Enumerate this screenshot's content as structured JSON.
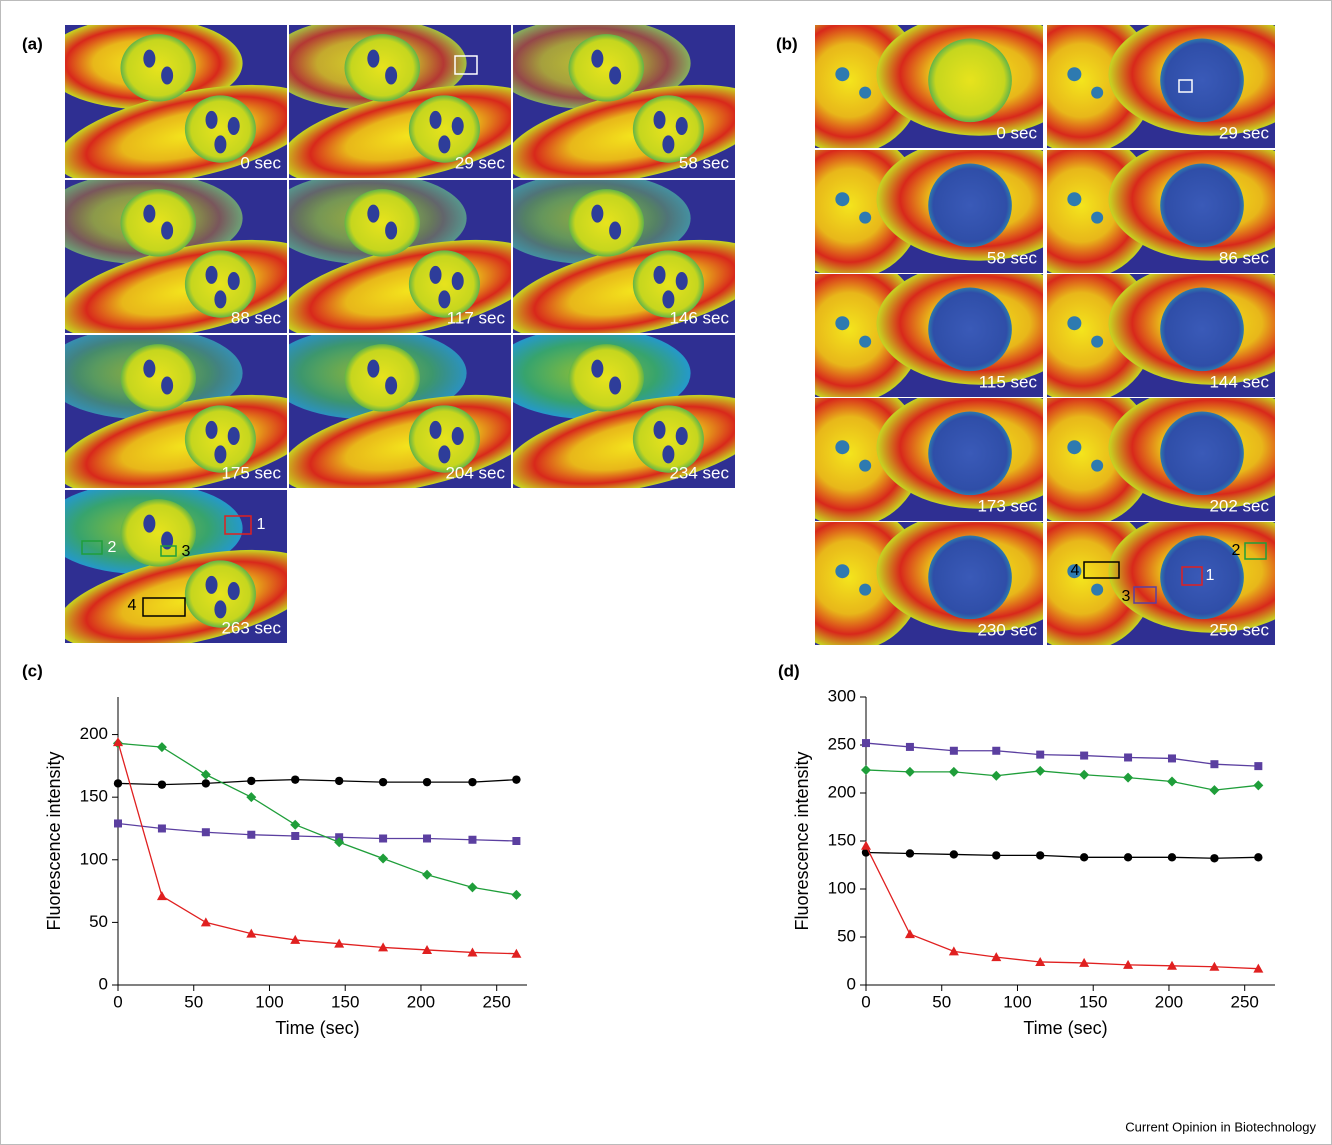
{
  "panel_a": {
    "label": "(a)",
    "frames": [
      "0 sec",
      "29 sec",
      "58 sec",
      "88 sec",
      "117 sec",
      "146 sec",
      "175 sec",
      "204 sec",
      "234 sec",
      "263 sec"
    ],
    "roi_labels": [
      "1",
      "2",
      "3",
      "4"
    ]
  },
  "panel_b": {
    "label": "(b)",
    "frames": [
      "0 sec",
      "29 sec",
      "58 sec",
      "86 sec",
      "115 sec",
      "144 sec",
      "173 sec",
      "202 sec",
      "230 sec",
      "259 sec"
    ],
    "roi_labels": [
      "4",
      "3",
      "1",
      "2"
    ]
  },
  "chart_data": [
    {
      "type": "line",
      "panel_label": "(c)",
      "x_label": "Time (sec)",
      "y_label": "Fluorescence intensity",
      "x": [
        0,
        29,
        58,
        88,
        117,
        146,
        175,
        204,
        234,
        263
      ],
      "xlim": [
        0,
        270
      ],
      "xticks": [
        0,
        50,
        100,
        150,
        200,
        250
      ],
      "ylim": [
        0,
        230
      ],
      "yticks": [
        0,
        50,
        100,
        150,
        200
      ],
      "series": [
        {
          "color": "#000000",
          "marker": "circle",
          "values": [
            161,
            160,
            161,
            163,
            164,
            163,
            162,
            162,
            162,
            164
          ]
        },
        {
          "color": "#5b3fa0",
          "marker": "square",
          "values": [
            129,
            125,
            122,
            120,
            119,
            118,
            117,
            117,
            116,
            115
          ]
        },
        {
          "color": "#1f9e3a",
          "marker": "diamond",
          "values": [
            193,
            190,
            168,
            150,
            128,
            114,
            101,
            88,
            78,
            72
          ]
        },
        {
          "color": "#e02020",
          "marker": "triangle",
          "values": [
            194,
            71,
            50,
            41,
            36,
            33,
            30,
            28,
            26,
            25
          ]
        }
      ]
    },
    {
      "type": "line",
      "panel_label": "(d)",
      "x_label": "Time (sec)",
      "y_label": "Fluorescence intensity",
      "x": [
        0,
        29,
        58,
        86,
        115,
        144,
        173,
        202,
        230,
        259
      ],
      "xlim": [
        0,
        270
      ],
      "xticks": [
        0,
        50,
        100,
        150,
        200,
        250
      ],
      "ylim": [
        0,
        300
      ],
      "yticks": [
        0,
        50,
        100,
        150,
        200,
        250,
        300
      ],
      "series": [
        {
          "color": "#5b3fa0",
          "marker": "square",
          "values": [
            252,
            248,
            244,
            244,
            240,
            239,
            237,
            236,
            230,
            228
          ]
        },
        {
          "color": "#1f9e3a",
          "marker": "diamond",
          "values": [
            224,
            222,
            222,
            218,
            223,
            219,
            216,
            212,
            203,
            208
          ]
        },
        {
          "color": "#000000",
          "marker": "circle",
          "values": [
            138,
            137,
            136,
            135,
            135,
            133,
            133,
            133,
            132,
            133
          ]
        },
        {
          "color": "#e02020",
          "marker": "triangle",
          "values": [
            145,
            53,
            35,
            29,
            24,
            23,
            21,
            20,
            19,
            17
          ]
        }
      ]
    }
  ],
  "footer": "Current Opinion in Biotechnology"
}
